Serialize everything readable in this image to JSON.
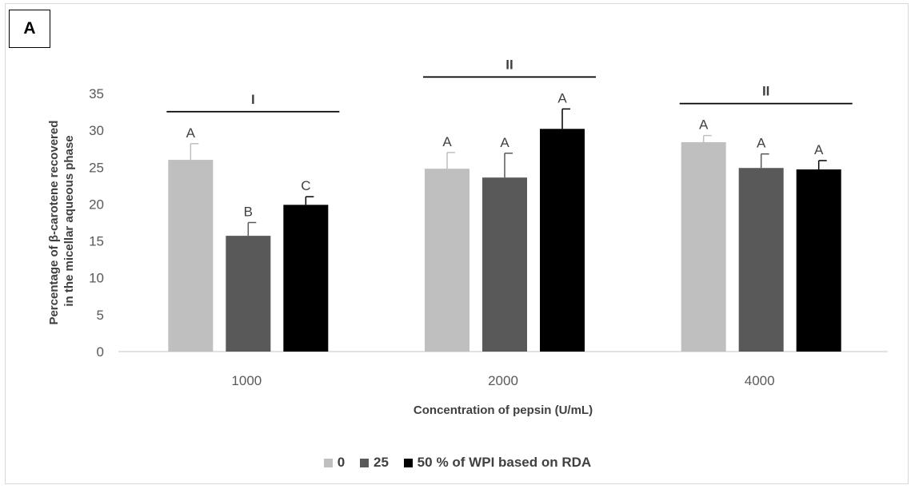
{
  "panel_label": "A",
  "chart_data": {
    "type": "bar",
    "title": "",
    "xlabel": "Concentration of pepsin (U/mL)",
    "ylabel_lines": [
      "Percentage of β-carotene recovered",
      "in the micellar aqueous phase"
    ],
    "ylim": [
      0,
      35
    ],
    "yticks": [
      0,
      5,
      10,
      15,
      20,
      25,
      30,
      35
    ],
    "grid": false,
    "legend_position": "bottom",
    "categories": [
      "1000",
      "2000",
      "4000"
    ],
    "legend_suffix": "% of WPI based on RDA",
    "series": [
      {
        "name": "0",
        "color": "#bfbfbf",
        "values": [
          26.0,
          24.8,
          28.4
        ],
        "errors": [
          2.2,
          2.2,
          0.9
        ],
        "letters": [
          "A",
          "A",
          "A"
        ]
      },
      {
        "name": "25",
        "color": "#595959",
        "values": [
          15.7,
          23.6,
          24.9
        ],
        "errors": [
          1.8,
          3.3,
          1.9
        ],
        "letters": [
          "B",
          "A",
          "A"
        ]
      },
      {
        "name": "50",
        "color": "#000000",
        "values": [
          19.9,
          30.2,
          24.7
        ],
        "errors": [
          1.1,
          2.7,
          1.2
        ],
        "letters": [
          "C",
          "A",
          "A"
        ]
      }
    ],
    "group_labels": [
      "I",
      "II",
      "II"
    ]
  }
}
